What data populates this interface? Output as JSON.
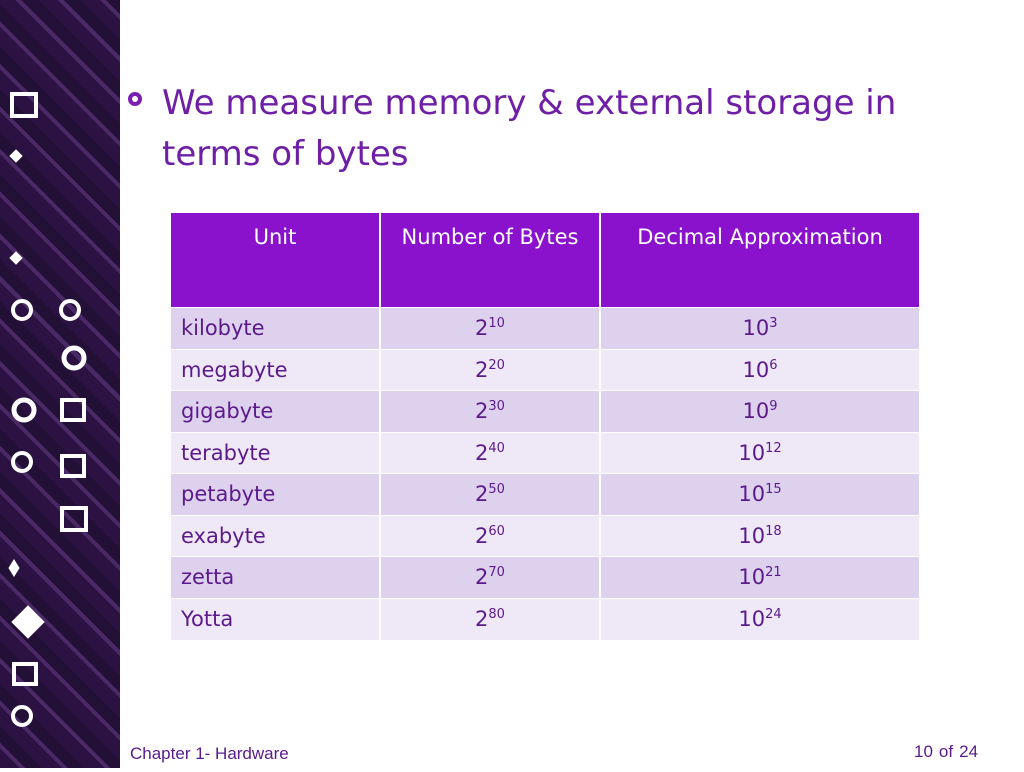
{
  "bullet": "We measure memory & external storage in terms of bytes",
  "table": {
    "header": [
      "Unit",
      "Number of Bytes",
      "Decimal Approximation"
    ],
    "rows": [
      {
        "unit": "kilobyte",
        "bytes": {
          "base": "2",
          "exp": "10"
        },
        "decimal": {
          "base": "10",
          "exp": "3"
        }
      },
      {
        "unit": "megabyte",
        "bytes": {
          "base": "2",
          "exp": "20"
        },
        "decimal": {
          "base": "10",
          "exp": "6"
        }
      },
      {
        "unit": "gigabyte",
        "bytes": {
          "base": "2",
          "exp": "30"
        },
        "decimal": {
          "base": "10",
          "exp": "9"
        }
      },
      {
        "unit": "terabyte",
        "bytes": {
          "base": "2",
          "exp": "40"
        },
        "decimal": {
          "base": "10",
          "exp": "12"
        }
      },
      {
        "unit": "petabyte",
        "bytes": {
          "base": "2",
          "exp": "50"
        },
        "decimal": {
          "base": "10",
          "exp": "15"
        }
      },
      {
        "unit": "exabyte",
        "bytes": {
          "base": "2",
          "exp": "60"
        },
        "decimal": {
          "base": "10",
          "exp": "18"
        }
      },
      {
        "unit": "zetta",
        "bytes": {
          "base": "2",
          "exp": "70"
        },
        "decimal": {
          "base": "10",
          "exp": "21"
        }
      },
      {
        "unit": "Yotta",
        "bytes": {
          "base": "2",
          "exp": "80"
        },
        "decimal": {
          "base": "10",
          "exp": "24"
        }
      }
    ]
  },
  "footer": {
    "chapter": "Chapter 1- Hardware",
    "page": "10",
    "of": "of",
    "total": "24"
  }
}
